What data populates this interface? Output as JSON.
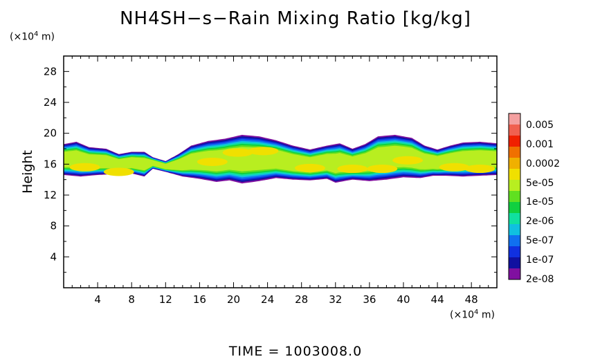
{
  "title": "NH4SH−s−Rain Mixing Ratio [kg/kg]",
  "footer": "TIME  =  1003008.0",
  "chart_data": {
    "type": "heatmap",
    "title": "NH4SH−s−Rain Mixing Ratio [kg/kg]",
    "ylabel": "Height",
    "x_unit_label": "(×10⁴ m)",
    "y_unit_label": "(×10⁴ m)",
    "xlim": [
      0,
      51
    ],
    "ylim": [
      0,
      30
    ],
    "x_ticks": [
      4,
      8,
      12,
      16,
      20,
      24,
      28,
      32,
      36,
      40,
      44,
      48
    ],
    "y_ticks": [
      4,
      8,
      12,
      16,
      20,
      24,
      28
    ],
    "colorbar": {
      "labels": [
        "0.005",
        "0.001",
        "0.0002",
        "5e-05",
        "1e-05",
        "2e-06",
        "5e-07",
        "1e-07",
        "2e-08"
      ],
      "colors": [
        "#f4a0a0",
        "#f06050",
        "#f02000",
        "#f07000",
        "#f0b000",
        "#f0e000",
        "#b8ee20",
        "#60e020",
        "#10d040",
        "#10e0a0",
        "#10c0e0",
        "#1070f0",
        "#1030e0",
        "#1010a0",
        "#8010a0"
      ]
    },
    "layer": {
      "top_profile": [
        [
          0,
          18.6
        ],
        [
          1.5,
          18.9
        ],
        [
          3,
          18.2
        ],
        [
          5,
          18.0
        ],
        [
          6.5,
          17.3
        ],
        [
          8,
          17.6
        ],
        [
          9.5,
          17.6
        ],
        [
          10.5,
          16.9
        ],
        [
          12,
          16.4
        ],
        [
          13.5,
          17.3
        ],
        [
          15,
          18.4
        ],
        [
          17,
          19.0
        ],
        [
          19,
          19.3
        ],
        [
          21,
          19.8
        ],
        [
          23,
          19.6
        ],
        [
          25,
          19.1
        ],
        [
          27,
          18.4
        ],
        [
          29,
          17.9
        ],
        [
          31,
          18.4
        ],
        [
          32.5,
          18.7
        ],
        [
          34,
          18.0
        ],
        [
          35.5,
          18.6
        ],
        [
          37,
          19.6
        ],
        [
          39,
          19.8
        ],
        [
          41,
          19.4
        ],
        [
          42.5,
          18.4
        ],
        [
          44,
          17.9
        ],
        [
          45.5,
          18.4
        ],
        [
          47,
          18.8
        ],
        [
          49,
          18.9
        ],
        [
          51,
          18.7
        ]
      ],
      "bottom_profile": [
        [
          0,
          14.6
        ],
        [
          2,
          14.4
        ],
        [
          4,
          14.6
        ],
        [
          6,
          14.7
        ],
        [
          8,
          14.8
        ],
        [
          9.5,
          14.4
        ],
        [
          10.5,
          15.4
        ],
        [
          12,
          15.0
        ],
        [
          14,
          14.4
        ],
        [
          16,
          14.1
        ],
        [
          18,
          13.7
        ],
        [
          19.5,
          13.9
        ],
        [
          21,
          13.5
        ],
        [
          23,
          13.8
        ],
        [
          25,
          14.2
        ],
        [
          27,
          14.0
        ],
        [
          29,
          13.9
        ],
        [
          31,
          14.1
        ],
        [
          32,
          13.6
        ],
        [
          34,
          14.0
        ],
        [
          36,
          13.8
        ],
        [
          38,
          14.0
        ],
        [
          40,
          14.3
        ],
        [
          42,
          14.2
        ],
        [
          43.5,
          14.5
        ],
        [
          45,
          14.5
        ],
        [
          47,
          14.4
        ],
        [
          49,
          14.5
        ],
        [
          51,
          14.6
        ]
      ],
      "core_centers": [
        [
          2.5,
          15.6
        ],
        [
          6.5,
          15.0
        ],
        [
          17.5,
          16.3
        ],
        [
          20.5,
          17.5
        ],
        [
          23.5,
          17.7
        ],
        [
          29,
          15.5
        ],
        [
          34,
          15.4
        ],
        [
          37.5,
          15.4
        ],
        [
          40.5,
          16.5
        ],
        [
          46,
          15.6
        ],
        [
          49,
          15.4
        ]
      ]
    }
  }
}
